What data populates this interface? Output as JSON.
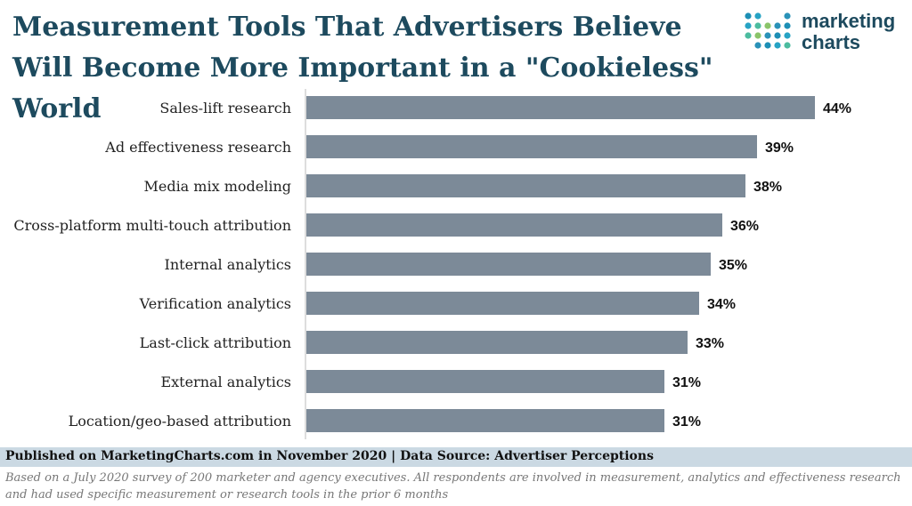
{
  "title": "Measurement Tools That Advertisers Believe Will Become More Important in a \"Cookieless\" World",
  "logo": {
    "line1": "marketing",
    "line2": "charts",
    "icon": "dot-grid-icon"
  },
  "colors": {
    "bar": "#7c8a98",
    "title": "#1d4a5e",
    "footer_bg": "#cbd9e3"
  },
  "chart_data": {
    "type": "bar",
    "orientation": "horizontal",
    "title": "Measurement Tools That Advertisers Believe Will Become More Important in a \"Cookieless\" World",
    "categories": [
      "Sales-lift research",
      "Ad effectiveness research",
      "Media mix modeling",
      "Cross-platform multi-touch attribution",
      "Internal analytics",
      "Verification analytics",
      "Last-click attribution",
      "External analytics",
      "Location/geo-based attribution"
    ],
    "values": [
      44,
      39,
      38,
      36,
      35,
      34,
      33,
      31,
      31
    ],
    "labels": [
      "44%",
      "39%",
      "38%",
      "36%",
      "35%",
      "34%",
      "33%",
      "31%",
      "31%"
    ],
    "xlim": [
      0,
      44
    ],
    "xlabel": "",
    "ylabel": ""
  },
  "footer": {
    "published": "Published on MarketingCharts.com in November 2020 | Data Source: Advertiser Perceptions",
    "note": "Based on a July 2020 survey of 200 marketer and agency executives. All respondents are involved in measurement, analytics and effectiveness research and had used specific measurement or research tools in the prior 6 months"
  }
}
